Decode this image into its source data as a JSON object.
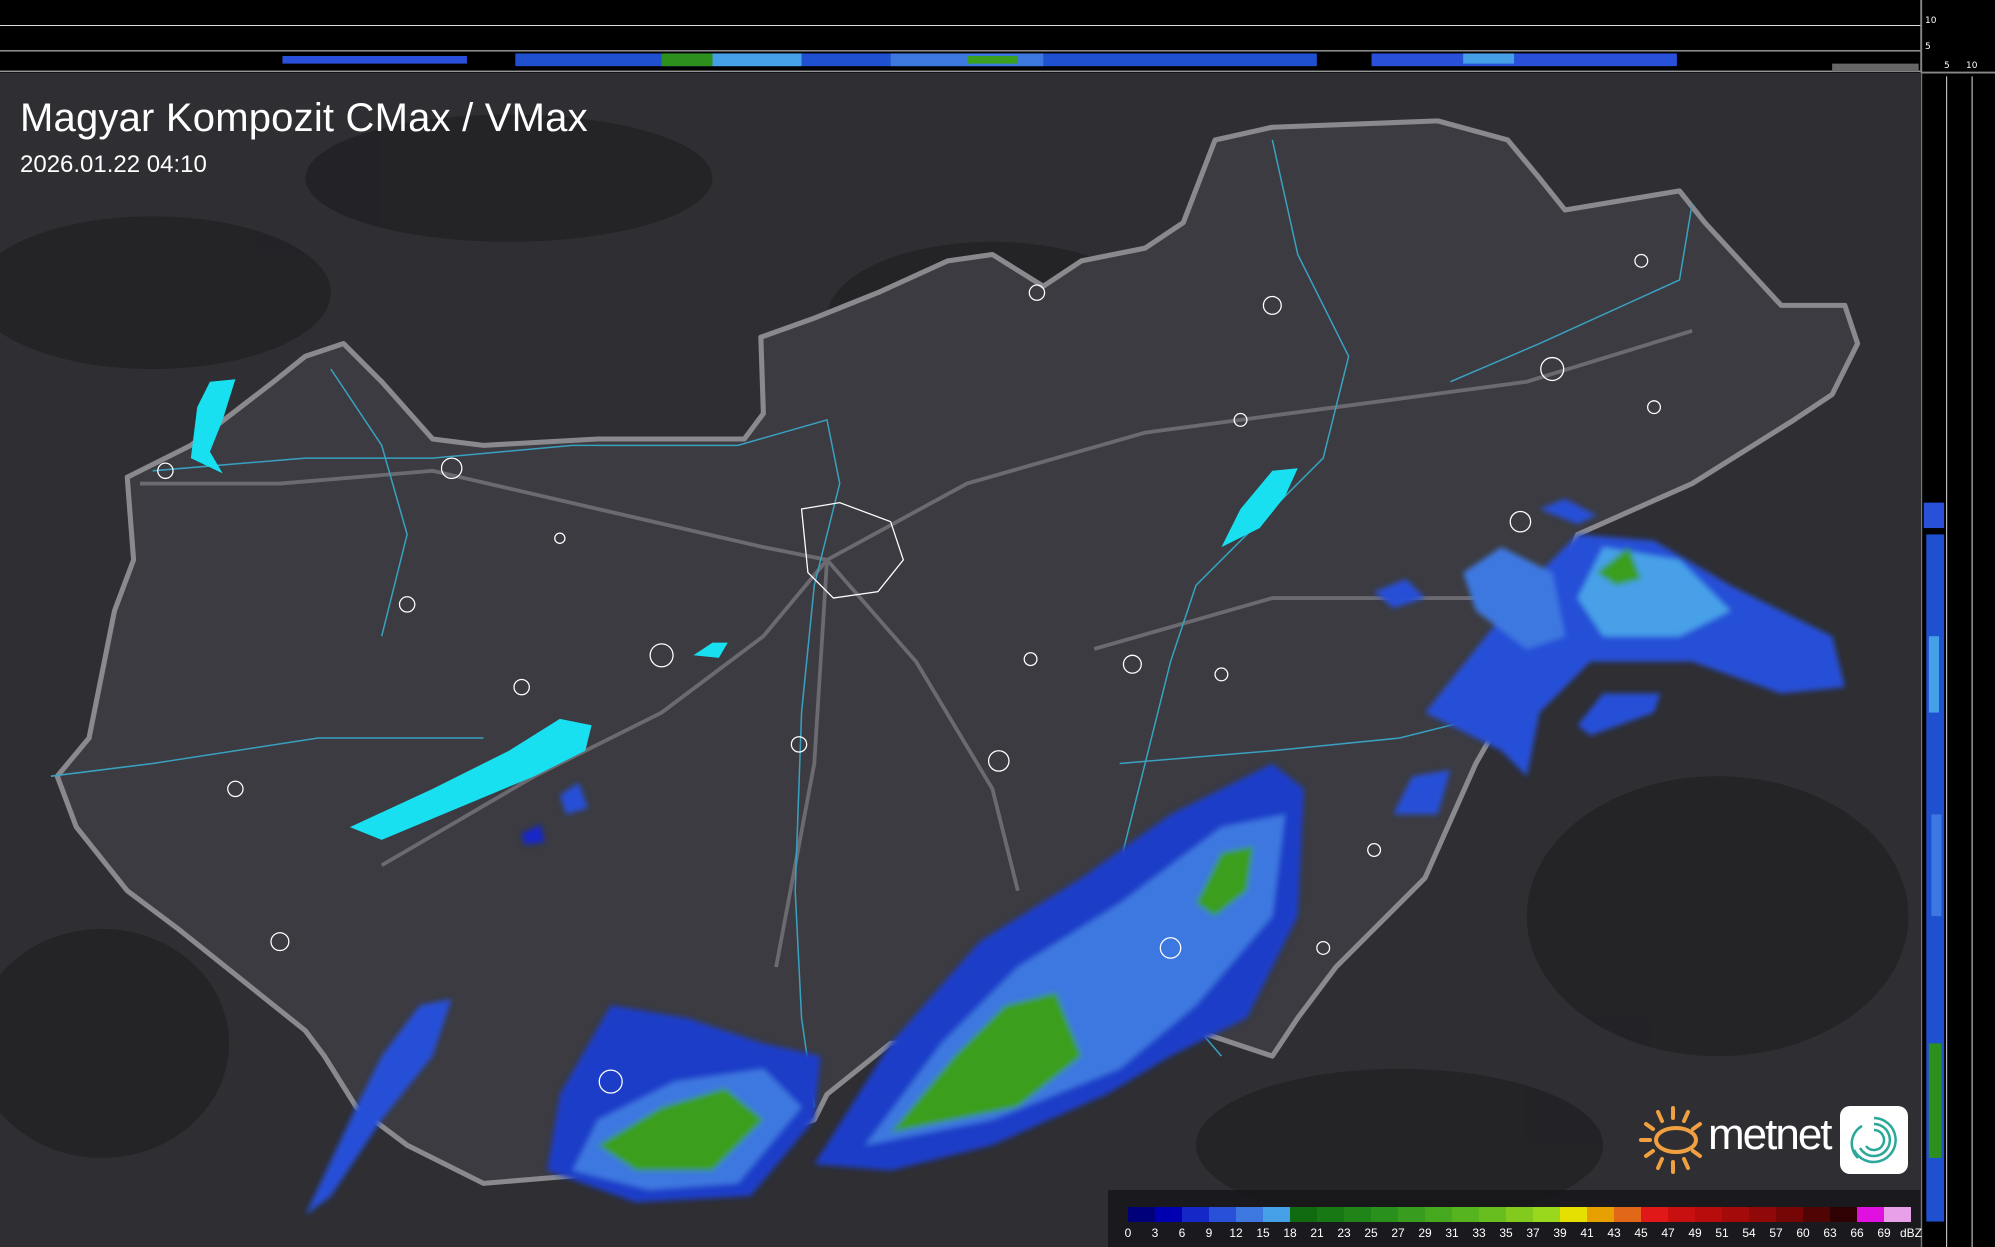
{
  "header": {
    "title": "Magyar Kompozit CMax / VMax",
    "timestamp": "2026.01.22 04:10"
  },
  "profile_axes": {
    "top_ticks": [
      "10",
      "5"
    ],
    "side_ticks": [
      "5",
      "10"
    ]
  },
  "legend": {
    "unit": "dBZ",
    "labels": [
      "0",
      "3",
      "6",
      "9",
      "12",
      "15",
      "18",
      "21",
      "23",
      "25",
      "27",
      "29",
      "31",
      "33",
      "35",
      "37",
      "39",
      "41",
      "43",
      "45",
      "47",
      "49",
      "51",
      "54",
      "57",
      "60",
      "63",
      "66",
      "69",
      "dBZ"
    ],
    "colors": [
      "#00007a",
      "#0000b0",
      "#1428c8",
      "#2850d8",
      "#3c78e0",
      "#46a0e8",
      "#106a10",
      "#187814",
      "#208418",
      "#2a901c",
      "#389c1e",
      "#46a81e",
      "#56b41e",
      "#68be1e",
      "#82ca1e",
      "#9ad81e",
      "#e6e000",
      "#e6a000",
      "#e06818",
      "#e01818",
      "#c81010",
      "#b80c0c",
      "#a40a0a",
      "#900808",
      "#760606",
      "#500404",
      "#2e0202",
      "#e010e0",
      "#e8a0e8"
    ]
  },
  "logo": {
    "brand": "metnet"
  },
  "colors": {
    "background": "#2e2e33",
    "country_fill": "#3a3a40",
    "border": "#8a8a8e",
    "rivers": "#3aa0c0",
    "lakes": "#18e0f0",
    "city_outline": "#ffffff"
  }
}
